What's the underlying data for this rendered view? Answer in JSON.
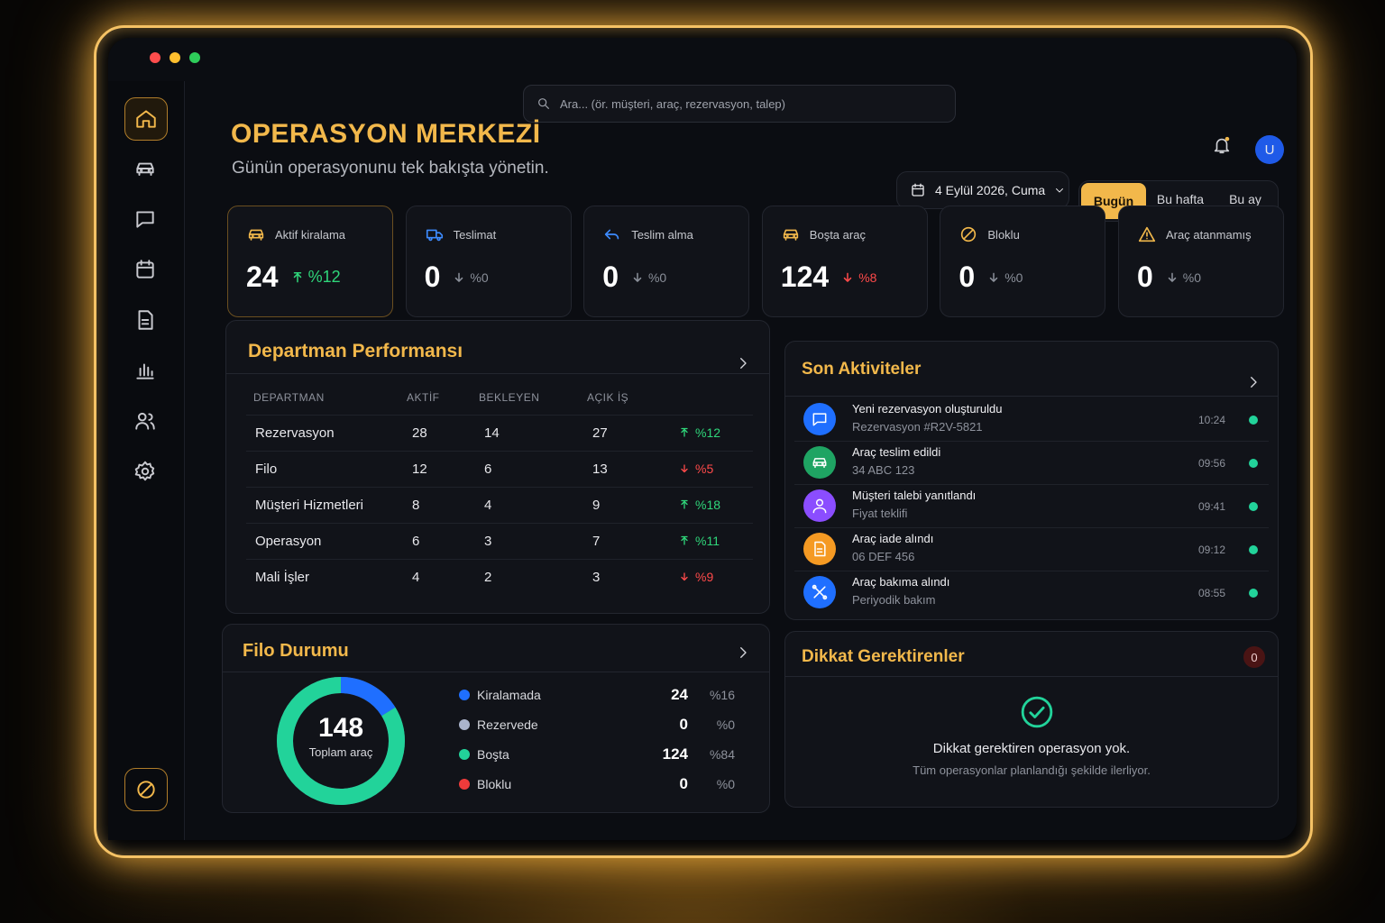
{
  "search": {
    "placeholder": "Ara... (ör. müşteri, araç, rezervasyon, talep)"
  },
  "header": {
    "title": "OPERASYON MERKEZİ",
    "subtitle": "Günün operasyonunu tek bakışta yönetin.",
    "date": "4 Eylül 2026, Cuma",
    "ranges": [
      "Bugün",
      "Bu hafta",
      "Bu ay"
    ],
    "avatar": "U"
  },
  "kpis": [
    {
      "label": "Aktif kiralama",
      "value": 24,
      "change": "%12",
      "trend": "up",
      "trend_color": "#2fd67a",
      "icon": "car",
      "icon_color": "#f2b84b"
    },
    {
      "label": "Teslimat",
      "value": 0,
      "change": "%0",
      "trend": "down",
      "trend_color": "#8a8f99",
      "icon": "truck",
      "icon_color": "#3d8bff"
    },
    {
      "label": "Teslim alma",
      "value": 0,
      "change": "%0",
      "trend": "down",
      "trend_color": "#8a8f99",
      "icon": "return",
      "icon_color": "#3d8bff"
    },
    {
      "label": "Boşta araç",
      "value": 124,
      "change": "%8",
      "trend": "down",
      "trend_color": "#ff4a4a",
      "icon": "car",
      "icon_color": "#f2b84b"
    },
    {
      "label": "Bloklu",
      "value": 0,
      "change": "%0",
      "trend": "down",
      "trend_color": "#8a8f99",
      "icon": "ban",
      "icon_color": "#f2b84b"
    },
    {
      "label": "Araç atanmamış",
      "value": 0,
      "change": "%0",
      "trend": "down",
      "trend_color": "#8a8f99",
      "icon": "warn",
      "icon_color": "#f2b84b"
    }
  ],
  "departments": {
    "title": "Departman Performansı",
    "columns": [
      "DEPARTMAN",
      "AKTİF",
      "BEKLEYEN",
      "AÇIK İŞ"
    ],
    "rows": [
      {
        "name": "Rezervasyon",
        "active": 28,
        "pending": 14,
        "open": 27,
        "change": "%12",
        "trend": "up"
      },
      {
        "name": "Filo",
        "active": 12,
        "pending": 6,
        "open": 13,
        "change": "%5",
        "trend": "down"
      },
      {
        "name": "Müşteri Hizmetleri",
        "active": 8,
        "pending": 4,
        "open": 9,
        "change": "%18",
        "trend": "up"
      },
      {
        "name": "Operasyon",
        "active": 6,
        "pending": 3,
        "open": 7,
        "change": "%11",
        "trend": "up"
      },
      {
        "name": "Mali İşler",
        "active": 4,
        "pending": 2,
        "open": 3,
        "change": "%9",
        "trend": "down"
      }
    ]
  },
  "activities": {
    "title": "Son Aktiviteler",
    "items": [
      {
        "title": "Yeni rezervasyon oluşturuldu",
        "detail": "Rezervasyon #R2V-5821",
        "time": "10:24",
        "icon": "chat",
        "color": "#1f6fff"
      },
      {
        "title": "Araç teslim edildi",
        "detail": "34 ABC 123",
        "time": "09:56",
        "icon": "car",
        "color": "#1fa463"
      },
      {
        "title": "Müşteri talebi yanıtlandı",
        "detail": "Fiyat teklifi",
        "time": "09:41",
        "icon": "user",
        "color": "#8b4dff"
      },
      {
        "title": "Araç iade alındı",
        "detail": "06 DEF 456",
        "time": "09:12",
        "icon": "doc",
        "color": "#f59a23"
      },
      {
        "title": "Araç bakıma alındı",
        "detail": "Periyodik bakım",
        "time": "08:55",
        "icon": "tools",
        "color": "#1f6fff"
      }
    ]
  },
  "fleet": {
    "title": "Filo Durumu",
    "total": 148,
    "total_label": "Toplam araç",
    "items": [
      {
        "name": "Kiralamada",
        "count": 24,
        "share": "%16",
        "color": "#1f6fff"
      },
      {
        "name": "Rezervede",
        "count": 0,
        "share": "%0",
        "color": "#aab4cc"
      },
      {
        "name": "Boşta",
        "count": 124,
        "share": "%84",
        "color": "#22d39a"
      },
      {
        "name": "Bloklu",
        "count": 0,
        "share": "%0",
        "color": "#ef3b3b"
      }
    ]
  },
  "alerts": {
    "title": "Dikkat Gerektirenler",
    "count": 0,
    "message": "Dikkat gerektiren operasyon yok.",
    "detail": "Tüm operasyonlar planlandığı şekilde ilerliyor."
  }
}
